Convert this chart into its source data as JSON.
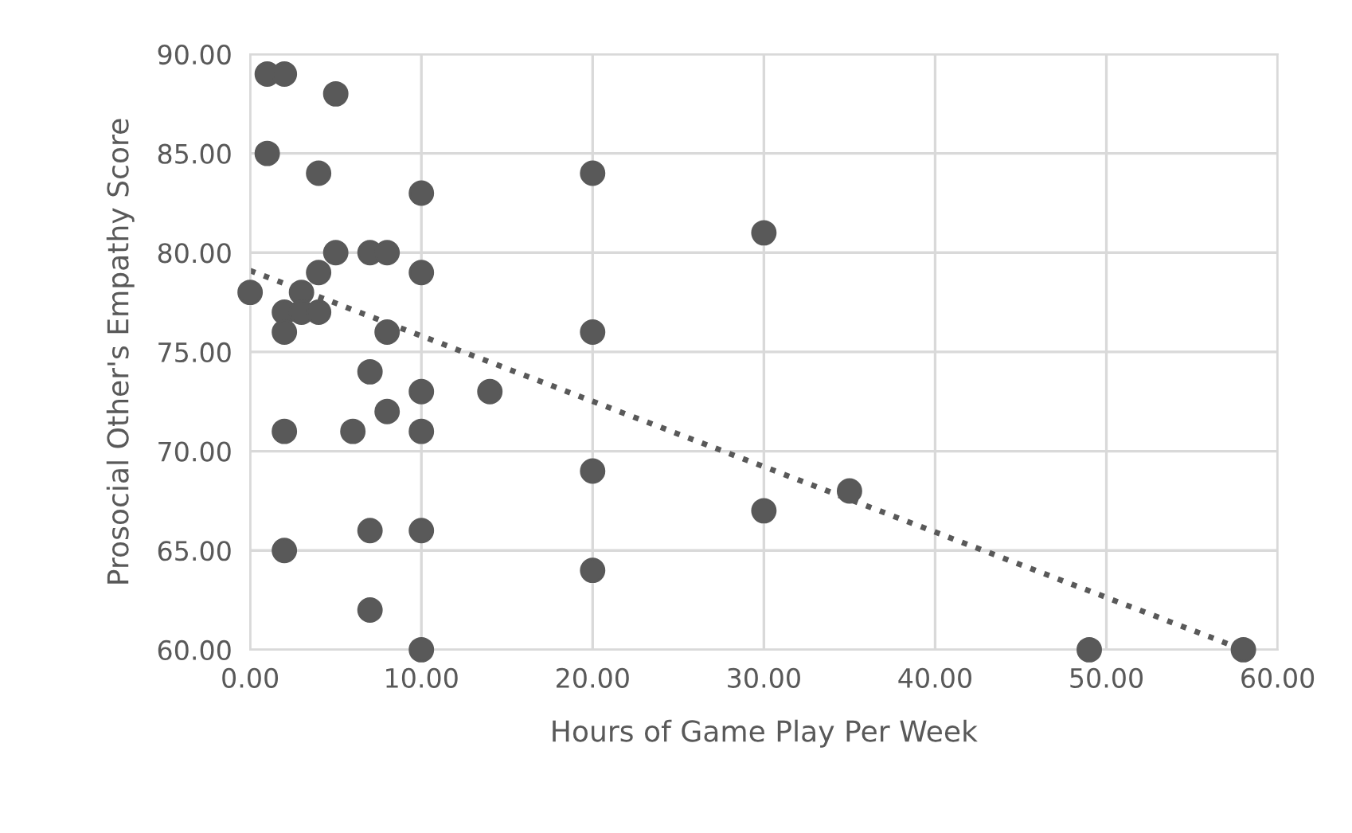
{
  "chart_data": {
    "type": "scatter",
    "xlabel": "Hours of Game Play Per Week",
    "ylabel": "Prosocial Other's Empathy Score",
    "xlim": [
      0,
      60
    ],
    "ylim": [
      60,
      90
    ],
    "xticks": [
      {
        "value": 0,
        "label": "0.00"
      },
      {
        "value": 10,
        "label": "10.00"
      },
      {
        "value": 20,
        "label": "20.00"
      },
      {
        "value": 30,
        "label": "30.00"
      },
      {
        "value": 40,
        "label": "40.00"
      },
      {
        "value": 50,
        "label": "50.00"
      },
      {
        "value": 60,
        "label": "60.00"
      }
    ],
    "yticks": [
      {
        "value": 60,
        "label": "60.00"
      },
      {
        "value": 65,
        "label": "65.00"
      },
      {
        "value": 70,
        "label": "70.00"
      },
      {
        "value": 75,
        "label": "75.00"
      },
      {
        "value": 80,
        "label": "80.00"
      },
      {
        "value": 85,
        "label": "85.00"
      },
      {
        "value": 90,
        "label": "90.00"
      }
    ],
    "grid": true,
    "marker": "circle",
    "series": [
      {
        "color": "#595959",
        "x": [
          1,
          2,
          5,
          1,
          4,
          10,
          5,
          7,
          8,
          4,
          10,
          0,
          3,
          2,
          3,
          4,
          2,
          8,
          7,
          10,
          8,
          2,
          6,
          10,
          7,
          10,
          2,
          7,
          10,
          20,
          30,
          20,
          14,
          20,
          35,
          30,
          20,
          49,
          58
        ],
        "values": [
          89,
          89,
          88,
          85,
          84,
          83,
          80,
          80,
          80,
          79,
          79,
          78,
          78,
          77,
          77,
          77,
          76,
          76,
          74,
          73,
          72,
          71,
          71,
          71,
          66,
          66,
          65,
          62,
          60,
          84,
          81,
          76,
          73,
          69,
          68,
          67,
          64,
          60,
          60
        ]
      },
      {
        "type": "line",
        "color": "#595959",
        "line_style": "dotted",
        "marker": "none",
        "x": [
          0,
          58
        ],
        "values": [
          79.1,
          60.0
        ]
      }
    ]
  }
}
